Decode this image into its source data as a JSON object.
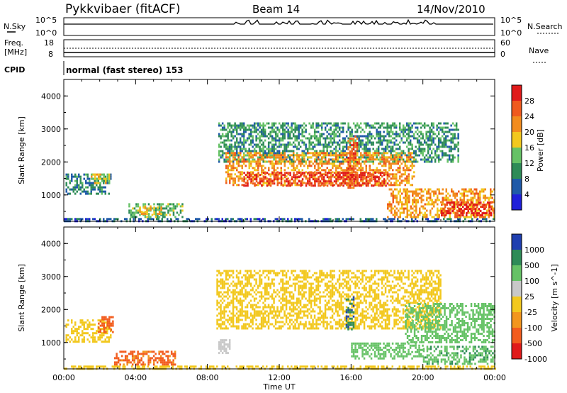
{
  "header": {
    "title": "Pykkvibaer (fitACF)",
    "beam": "Beam 14",
    "date": "14/Nov/2010"
  },
  "status_panel": {
    "nsky_label": "N.Sky",
    "nsearch_label": "N.Search",
    "nsky_ticks": [
      "10^5",
      "10^0"
    ],
    "nsearch_ticks": [
      "10^5",
      "10^0"
    ],
    "freq_label": "Freq.",
    "freq_unit": "[MHz]",
    "freq_ticks": [
      "18",
      "8"
    ],
    "nave_label": "Nave",
    "nave_ticks": [
      "60",
      "0"
    ],
    "cpid_label": "CPID",
    "cpid_text": "normal (fast stereo) 153"
  },
  "colors": {
    "power_scale": [
      "#1f1fd9",
      "#1f5aa8",
      "#2e8b57",
      "#66c266",
      "#f2c81e",
      "#f28c1e",
      "#ef5a1e",
      "#e01a1a"
    ],
    "velocity_scale": [
      "#e01a1a",
      "#f25c1e",
      "#f2961e",
      "#f2c81e",
      "#c8c8c8",
      "#66c266",
      "#2e8b57",
      "#1f3fb0"
    ],
    "ground_scatter": "#bfbfbf"
  },
  "chart_data": [
    {
      "type": "heatmap",
      "title": "",
      "xlabel": "",
      "ylabel": "Slant Range [km]",
      "yticks": [
        "1000",
        "2000",
        "3000",
        "4000"
      ],
      "ylim": [
        200,
        4500
      ],
      "colorbar_label": "Power [dB]",
      "colorbar_ticks": [
        "4",
        "8",
        "12",
        "16",
        "20",
        "24",
        "28"
      ],
      "clim": [
        0,
        30
      ],
      "regions": [
        {
          "x": [
            0.1,
            2.6
          ],
          "y": [
            1050,
            1650
          ],
          "value": 8
        },
        {
          "x": [
            1.5,
            2.6
          ],
          "y": [
            1350,
            1650
          ],
          "value": 16
        },
        {
          "x": [
            3.6,
            6.6
          ],
          "y": [
            350,
            750
          ],
          "value": 12
        },
        {
          "x": [
            4.2,
            5.4
          ],
          "y": [
            450,
            650
          ],
          "value": 18
        },
        {
          "x": [
            0.0,
            24.0
          ],
          "y": [
            220,
            300
          ],
          "value": 6
        },
        {
          "x": [
            8.6,
            22.0
          ],
          "y": [
            2000,
            3200
          ],
          "value": 10
        },
        {
          "x": [
            9.0,
            19.5
          ],
          "y": [
            1300,
            2300
          ],
          "value": 20
        },
        {
          "x": [
            10.0,
            18.0
          ],
          "y": [
            1300,
            1700
          ],
          "value": 27
        },
        {
          "x": [
            15.8,
            16.3
          ],
          "y": [
            1200,
            2800
          ],
          "value": 24
        },
        {
          "x": [
            18.0,
            24.0
          ],
          "y": [
            350,
            1200
          ],
          "value": 20
        },
        {
          "x": [
            21.0,
            23.8
          ],
          "y": [
            350,
            800
          ],
          "value": 28
        }
      ]
    },
    {
      "type": "heatmap",
      "title": "",
      "xlabel": "Time UT",
      "ylabel": "Slant Range [km]",
      "yticks": [
        "1000",
        "2000",
        "3000",
        "4000"
      ],
      "ylim": [
        200,
        4500
      ],
      "colorbar_label": "Velocity [m s^-1]",
      "colorbar_ticks": [
        "1000",
        "500",
        "100",
        "25",
        "-25",
        "-100",
        "-500",
        "-1000"
      ],
      "xticks": [
        "00:00",
        "04:00",
        "08:00",
        "12:00",
        "16:00",
        "20:00",
        "00:00"
      ],
      "xlim": [
        0,
        24
      ],
      "regions": [
        {
          "x": [
            0.1,
            2.6
          ],
          "y": [
            1050,
            1700
          ],
          "value": 0
        },
        {
          "x": [
            1.9,
            2.7
          ],
          "y": [
            1300,
            1800
          ],
          "value": -150
        },
        {
          "x": [
            2.8,
            6.2
          ],
          "y": [
            350,
            750
          ],
          "value": -120
        },
        {
          "x": [
            0.0,
            24.0
          ],
          "y": [
            220,
            300
          ],
          "value": 0
        },
        {
          "x": [
            8.5,
            21.0
          ],
          "y": [
            1400,
            3200
          ],
          "value": 0
        },
        {
          "x": [
            15.7,
            16.1
          ],
          "y": [
            1400,
            2400
          ],
          "value": 900
        },
        {
          "x": [
            16.0,
            20.0
          ],
          "y": [
            500,
            1000
          ],
          "value": 400
        },
        {
          "x": [
            19.0,
            24.0
          ],
          "y": [
            1000,
            2200
          ],
          "value": 300
        },
        {
          "x": [
            20.0,
            24.0
          ],
          "y": [
            350,
            900
          ],
          "value": 450
        },
        {
          "x": [
            8.6,
            9.2
          ],
          "y": [
            650,
            1100
          ],
          "value": 60
        }
      ]
    }
  ]
}
